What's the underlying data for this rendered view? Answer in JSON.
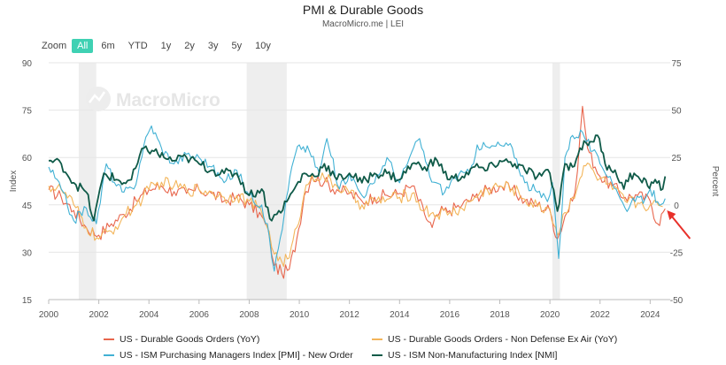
{
  "header": {
    "title": "PMI & Durable Goods",
    "subtitle": "MacroMicro.me | LEI"
  },
  "zoom": {
    "label": "Zoom",
    "buttons": [
      "All",
      "6m",
      "YTD",
      "1y",
      "2y",
      "3y",
      "5y",
      "10y"
    ],
    "selected": "All"
  },
  "watermark": "MacroMicro",
  "colors": {
    "durable": "#e8664d",
    "nondefense": "#f3b55a",
    "ism_pmi_new_order": "#41b1d4",
    "ism_nmi": "#0f5a48",
    "recession": "#eeeeee",
    "annotation_arrow": "#e8302a"
  },
  "chart_data": {
    "type": "line",
    "xlim": [
      2000,
      2024.8
    ],
    "x_ticks": [
      "2000",
      "2002",
      "2004",
      "2006",
      "2008",
      "2010",
      "2012",
      "2014",
      "2016",
      "2018",
      "2020",
      "2022",
      "2024"
    ],
    "left_axis": {
      "label": "Index",
      "ylim": [
        15,
        90
      ],
      "ticks": [
        15,
        30,
        45,
        60,
        75,
        90
      ]
    },
    "right_axis": {
      "label": "Percent",
      "ylim": [
        -50,
        75
      ],
      "ticks": [
        -50,
        -25,
        0,
        25,
        50,
        75
      ]
    },
    "recession_bands": [
      [
        2001.2,
        2001.9
      ],
      [
        2007.9,
        2009.5
      ],
      [
        2020.1,
        2020.4
      ]
    ],
    "grid": true,
    "legend_position": "bottom",
    "series": [
      {
        "name": "US - Durable Goods Orders (YoY)",
        "axis": "right",
        "color": "#e8664d",
        "points": [
          [
            2000.0,
            8
          ],
          [
            2000.5,
            4
          ],
          [
            2001.0,
            -3
          ],
          [
            2001.5,
            -12
          ],
          [
            2002.0,
            -16
          ],
          [
            2002.5,
            -10
          ],
          [
            2003.0,
            -5
          ],
          [
            2003.5,
            2
          ],
          [
            2004.0,
            8
          ],
          [
            2004.5,
            10
          ],
          [
            2005.0,
            7
          ],
          [
            2005.5,
            6
          ],
          [
            2006.0,
            8
          ],
          [
            2006.5,
            6
          ],
          [
            2007.0,
            2
          ],
          [
            2007.5,
            4
          ],
          [
            2008.0,
            0
          ],
          [
            2008.5,
            -6
          ],
          [
            2008.8,
            -16
          ],
          [
            2009.0,
            -32
          ],
          [
            2009.3,
            -36
          ],
          [
            2009.6,
            -34
          ],
          [
            2009.9,
            -18
          ],
          [
            2010.2,
            5
          ],
          [
            2010.5,
            15
          ],
          [
            2011.0,
            12
          ],
          [
            2011.5,
            8
          ],
          [
            2012.0,
            6
          ],
          [
            2012.5,
            2
          ],
          [
            2013.0,
            4
          ],
          [
            2013.5,
            5
          ],
          [
            2014.0,
            6
          ],
          [
            2014.5,
            10
          ],
          [
            2015.0,
            -5
          ],
          [
            2015.3,
            -12
          ],
          [
            2015.6,
            -4
          ],
          [
            2016.0,
            -3
          ],
          [
            2016.5,
            0
          ],
          [
            2017.0,
            4
          ],
          [
            2017.5,
            8
          ],
          [
            2018.0,
            10
          ],
          [
            2018.5,
            8
          ],
          [
            2019.0,
            2
          ],
          [
            2019.5,
            0
          ],
          [
            2020.0,
            -3
          ],
          [
            2020.3,
            -18
          ],
          [
            2020.6,
            -6
          ],
          [
            2020.9,
            2
          ],
          [
            2021.1,
            18
          ],
          [
            2021.3,
            52
          ],
          [
            2021.5,
            30
          ],
          [
            2021.8,
            20
          ],
          [
            2022.0,
            15
          ],
          [
            2022.5,
            10
          ],
          [
            2023.0,
            4
          ],
          [
            2023.5,
            5
          ],
          [
            2024.0,
            2
          ],
          [
            2024.3,
            -10
          ],
          [
            2024.6,
            -2
          ]
        ]
      },
      {
        "name": "US - Durable Goods Orders - Non Defense Ex Air (YoY)",
        "axis": "right",
        "color": "#f3b55a",
        "points": [
          [
            2000.0,
            10
          ],
          [
            2000.5,
            8
          ],
          [
            2001.0,
            0
          ],
          [
            2001.5,
            -12
          ],
          [
            2002.0,
            -18
          ],
          [
            2002.5,
            -14
          ],
          [
            2003.0,
            -6
          ],
          [
            2003.5,
            0
          ],
          [
            2004.0,
            8
          ],
          [
            2004.5,
            12
          ],
          [
            2005.0,
            10
          ],
          [
            2005.5,
            8
          ],
          [
            2006.0,
            8
          ],
          [
            2006.5,
            7
          ],
          [
            2007.0,
            4
          ],
          [
            2007.5,
            5
          ],
          [
            2008.0,
            2
          ],
          [
            2008.5,
            -4
          ],
          [
            2008.8,
            -14
          ],
          [
            2009.0,
            -26
          ],
          [
            2009.3,
            -30
          ],
          [
            2009.6,
            -28
          ],
          [
            2009.9,
            -12
          ],
          [
            2010.2,
            6
          ],
          [
            2010.5,
            16
          ],
          [
            2011.0,
            14
          ],
          [
            2011.5,
            10
          ],
          [
            2012.0,
            6
          ],
          [
            2012.5,
            0
          ],
          [
            2013.0,
            2
          ],
          [
            2013.5,
            3
          ],
          [
            2014.0,
            4
          ],
          [
            2014.5,
            6
          ],
          [
            2015.0,
            -3
          ],
          [
            2015.5,
            -5
          ],
          [
            2016.0,
            -4
          ],
          [
            2016.5,
            -2
          ],
          [
            2017.0,
            4
          ],
          [
            2017.5,
            8
          ],
          [
            2018.0,
            10
          ],
          [
            2018.5,
            9
          ],
          [
            2019.0,
            3
          ],
          [
            2019.5,
            -1
          ],
          [
            2020.0,
            -2
          ],
          [
            2020.3,
            -16
          ],
          [
            2020.6,
            -4
          ],
          [
            2020.9,
            4
          ],
          [
            2021.2,
            14
          ],
          [
            2021.5,
            22
          ],
          [
            2021.8,
            16
          ],
          [
            2022.0,
            14
          ],
          [
            2022.5,
            8
          ],
          [
            2023.0,
            2
          ],
          [
            2023.5,
            1
          ],
          [
            2024.0,
            0
          ],
          [
            2024.5,
            -1
          ]
        ]
      },
      {
        "name": "US - ISM Purchasing Managers Index [PMI] - New Order",
        "axis": "left",
        "color": "#41b1d4",
        "points": [
          [
            2000.0,
            57
          ],
          [
            2000.5,
            50
          ],
          [
            2001.0,
            40
          ],
          [
            2001.5,
            44
          ],
          [
            2001.9,
            39
          ],
          [
            2002.3,
            58
          ],
          [
            2002.7,
            51
          ],
          [
            2003.0,
            49
          ],
          [
            2003.4,
            50
          ],
          [
            2003.8,
            64
          ],
          [
            2004.1,
            70
          ],
          [
            2004.5,
            63
          ],
          [
            2005.0,
            58
          ],
          [
            2005.5,
            61
          ],
          [
            2006.0,
            60
          ],
          [
            2006.5,
            57
          ],
          [
            2007.0,
            52
          ],
          [
            2007.5,
            56
          ],
          [
            2008.0,
            48
          ],
          [
            2008.5,
            45
          ],
          [
            2008.8,
            35
          ],
          [
            2009.0,
            24
          ],
          [
            2009.4,
            42
          ],
          [
            2009.7,
            57
          ],
          [
            2010.0,
            64
          ],
          [
            2010.4,
            62
          ],
          [
            2010.8,
            55
          ],
          [
            2011.1,
            66
          ],
          [
            2011.6,
            50
          ],
          [
            2012.0,
            55
          ],
          [
            2012.5,
            48
          ],
          [
            2013.0,
            52
          ],
          [
            2013.5,
            60
          ],
          [
            2014.0,
            52
          ],
          [
            2014.4,
            60
          ],
          [
            2014.8,
            66
          ],
          [
            2015.2,
            54
          ],
          [
            2015.8,
            49
          ],
          [
            2016.2,
            54
          ],
          [
            2016.8,
            55
          ],
          [
            2017.1,
            64
          ],
          [
            2017.6,
            63
          ],
          [
            2018.0,
            64
          ],
          [
            2018.5,
            63
          ],
          [
            2019.0,
            52
          ],
          [
            2019.5,
            49
          ],
          [
            2019.9,
            46
          ],
          [
            2020.1,
            52
          ],
          [
            2020.35,
            28
          ],
          [
            2020.6,
            60
          ],
          [
            2020.9,
            67
          ],
          [
            2021.3,
            68
          ],
          [
            2021.7,
            62
          ],
          [
            2022.0,
            58
          ],
          [
            2022.4,
            54
          ],
          [
            2022.8,
            47
          ],
          [
            2023.0,
            44
          ],
          [
            2023.4,
            46
          ],
          [
            2023.8,
            47
          ],
          [
            2024.0,
            50
          ],
          [
            2024.3,
            46
          ],
          [
            2024.6,
            47
          ]
        ]
      },
      {
        "name": "US - ISM Non-Manufacturing Index [NMI]",
        "axis": "left",
        "color": "#0f5a48",
        "points": [
          [
            2000.0,
            59
          ],
          [
            2000.5,
            58
          ],
          [
            2001.0,
            52
          ],
          [
            2001.5,
            49
          ],
          [
            2001.8,
            40
          ],
          [
            2002.2,
            55
          ],
          [
            2002.7,
            53
          ],
          [
            2003.0,
            52
          ],
          [
            2003.3,
            53
          ],
          [
            2003.8,
            63
          ],
          [
            2004.2,
            62
          ],
          [
            2004.6,
            60
          ],
          [
            2005.0,
            59
          ],
          [
            2005.5,
            60
          ],
          [
            2006.0,
            58
          ],
          [
            2006.5,
            56
          ],
          [
            2007.0,
            55
          ],
          [
            2007.5,
            55
          ],
          [
            2008.0,
            48
          ],
          [
            2008.5,
            50
          ],
          [
            2008.9,
            40
          ],
          [
            2009.1,
            42
          ],
          [
            2009.5,
            46
          ],
          [
            2009.8,
            50
          ],
          [
            2010.2,
            55
          ],
          [
            2010.6,
            54
          ],
          [
            2011.0,
            58
          ],
          [
            2011.5,
            53
          ],
          [
            2012.0,
            55
          ],
          [
            2012.5,
            52
          ],
          [
            2013.0,
            55
          ],
          [
            2013.5,
            55
          ],
          [
            2014.0,
            53
          ],
          [
            2014.5,
            58
          ],
          [
            2015.0,
            57
          ],
          [
            2015.5,
            59
          ],
          [
            2016.0,
            53
          ],
          [
            2016.5,
            54
          ],
          [
            2017.0,
            57
          ],
          [
            2017.5,
            56
          ],
          [
            2018.0,
            59
          ],
          [
            2018.6,
            58
          ],
          [
            2019.0,
            56
          ],
          [
            2019.5,
            54
          ],
          [
            2020.0,
            55
          ],
          [
            2020.3,
            43
          ],
          [
            2020.6,
            58
          ],
          [
            2020.9,
            57
          ],
          [
            2021.2,
            63
          ],
          [
            2021.6,
            65
          ],
          [
            2021.9,
            67
          ],
          [
            2022.2,
            58
          ],
          [
            2022.6,
            56
          ],
          [
            2022.95,
            50
          ],
          [
            2023.2,
            55
          ],
          [
            2023.6,
            53
          ],
          [
            2023.9,
            51
          ],
          [
            2024.2,
            53
          ],
          [
            2024.5,
            50
          ],
          [
            2024.6,
            54
          ]
        ]
      }
    ],
    "annotation": {
      "type": "arrow",
      "target_x": 2024.6
    }
  },
  "legend": [
    {
      "label": "US - Durable Goods Orders (YoY)",
      "color": "#e8664d"
    },
    {
      "label": "US - Durable Goods Orders - Non Defense Ex Air (YoY)",
      "color": "#f3b55a"
    },
    {
      "label": "US - ISM Purchasing Managers Index [PMI] - New Order",
      "color": "#41b1d4"
    },
    {
      "label": "US - ISM Non-Manufacturing Index [NMI]",
      "color": "#0f5a48"
    }
  ]
}
